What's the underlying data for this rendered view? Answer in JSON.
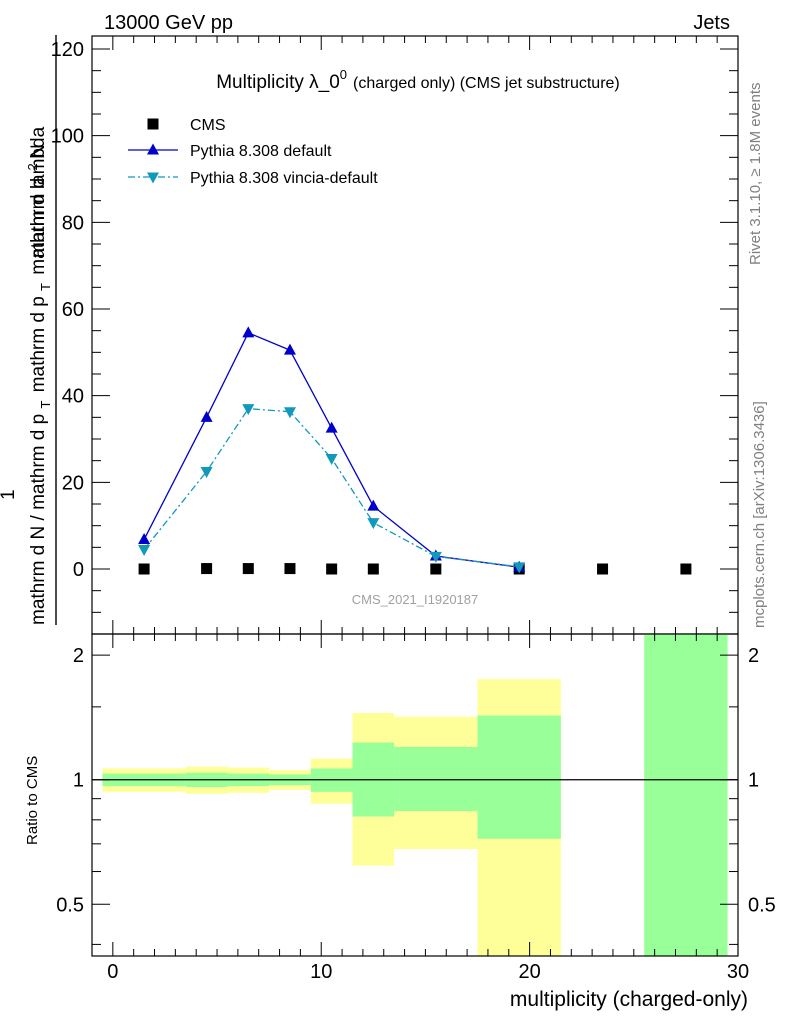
{
  "header": {
    "left": "13000 GeV pp",
    "right": "Jets"
  },
  "side": {
    "top": "Rivet 3.1.10, ≥ 1.8M events",
    "bottom": "mcplots.cern.ch [arXiv:1306.3436]"
  },
  "watermark": "CMS_2021_I1920187",
  "chart_data": [
    {
      "type": "line",
      "title": {
        "main": "Multiplicity λ_0",
        "sup": "0",
        "rest": "(charged only) (CMS jet substructure)"
      },
      "ylabel": {
        "frac_top_prefix": "1",
        "frac_top": "mathrm d",
        "frac_top_N": "N",
        "frac_mid": "mathrm d p",
        "frac_mid_sub": "T",
        "frac_mid2": "mathrm d p",
        "frac_mid2_sub": "T",
        "frac_mid3": "mathrm d lambda",
        "frac_bottom": "mathrm d N / mathrm d p",
        "frac_bottom_sub": "T",
        "frac_bottom2": "mathrm d lambda"
      },
      "ylabel_parts": {
        "num_left": "1",
        "den_left": "mathrm d N / mathrm d p",
        "den_left_sub": "T",
        "num_right": "mathrm d",
        "num_right_sup": "2",
        "num_right_N": "N",
        "den_right": "mathrm d p",
        "den_right_sub": "T",
        "den_right2": "mathrm d lambda"
      },
      "xlim": [
        -1,
        30
      ],
      "ylim": [
        -15,
        123
      ],
      "y_ticks": [
        0,
        20,
        40,
        60,
        80,
        100,
        120
      ],
      "legend": [
        {
          "name": "CMS",
          "marker": "square",
          "color": "#000000"
        },
        {
          "name": "Pythia 8.308 default",
          "marker": "triangle-up",
          "color": "#0000cc"
        },
        {
          "name": "Pythia 8.308 vincia-default",
          "marker": "triangle-down",
          "color": "#1199bb"
        }
      ],
      "series": [
        {
          "name": "CMS",
          "x": [
            1.5,
            4.5,
            6.5,
            8.5,
            10.5,
            12.5,
            15.5,
            19.5,
            23.5,
            27.5
          ],
          "values": [
            0,
            0.1,
            0.1,
            0.1,
            0,
            0,
            0,
            0,
            0,
            0
          ]
        },
        {
          "name": "Pythia 8.308 default",
          "x": [
            1.5,
            4.5,
            6.5,
            8.5,
            10.5,
            12.5,
            15.5,
            19.5
          ],
          "values": [
            6.8,
            35,
            54.5,
            50.5,
            32.5,
            14.5,
            3,
            0.4
          ]
        },
        {
          "name": "Pythia 8.308 vincia-default",
          "x": [
            1.5,
            4.5,
            6.5,
            8.5,
            10.5,
            12.5,
            15.5,
            19.5
          ],
          "values": [
            4.5,
            22.5,
            37,
            36.3,
            25.5,
            10.7,
            2.9,
            0.5
          ]
        }
      ]
    },
    {
      "type": "area",
      "ylabel": "Ratio to CMS",
      "xlabel": "multiplicity (charged-only)",
      "xlim": [
        -1,
        30
      ],
      "ylim": [
        0.375,
        2.25
      ],
      "y_ticks": [
        0.5,
        1,
        2
      ],
      "x_ticks": [
        0,
        10,
        20,
        30
      ],
      "reference": 1,
      "bands": [
        {
          "x0": -0.5,
          "x1": 3.5,
          "outer": [
            0.935,
            1.065
          ],
          "inner": [
            0.965,
            1.035
          ]
        },
        {
          "x0": 3.5,
          "x1": 5.5,
          "outer": [
            0.925,
            1.075
          ],
          "inner": [
            0.96,
            1.04
          ]
        },
        {
          "x0": 5.5,
          "x1": 7.5,
          "outer": [
            0.93,
            1.07
          ],
          "inner": [
            0.965,
            1.035
          ]
        },
        {
          "x0": 7.5,
          "x1": 9.5,
          "outer": [
            0.945,
            1.055
          ],
          "inner": [
            0.97,
            1.03
          ]
        },
        {
          "x0": 9.5,
          "x1": 11.5,
          "outer": [
            0.875,
            1.125
          ],
          "inner": [
            0.935,
            1.065
          ]
        },
        {
          "x0": 11.5,
          "x1": 13.5,
          "outer": [
            0.62,
            1.45
          ],
          "inner": [
            0.815,
            1.23
          ]
        },
        {
          "x0": 13.5,
          "x1": 17.5,
          "outer": [
            0.68,
            1.42
          ],
          "inner": [
            0.84,
            1.2
          ]
        },
        {
          "x0": 17.5,
          "x1": 21.5,
          "outer": [
            0.3,
            1.75
          ],
          "inner": [
            0.72,
            1.43
          ]
        },
        {
          "x0": 25.5,
          "x1": 29.5,
          "outer": [
            0.3,
            3
          ],
          "inner": [
            0.3,
            3
          ]
        }
      ]
    }
  ]
}
